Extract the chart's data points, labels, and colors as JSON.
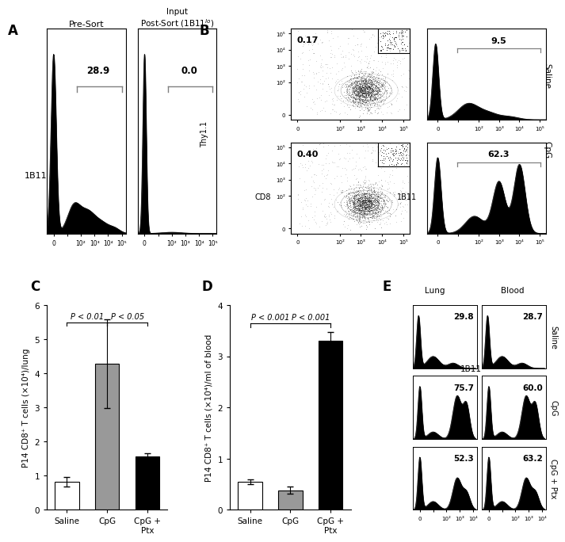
{
  "panel_A": {
    "label": "A",
    "title_left": "Pre-Sort",
    "title_right": "Input\nPost-Sort (1B11ᴸᵒ)",
    "xlabel": "1B11",
    "hist1_value": "28.9",
    "hist2_value": "0.0"
  },
  "panel_B": {
    "label": "B",
    "dot1_value": "0.17",
    "dot2_value": "0.40",
    "hist1_value": "9.5",
    "hist2_value": "62.3",
    "ylabel": "Thy1.1",
    "xlabel": "CD8",
    "xlabel2": "1B11",
    "label_saline": "Saline",
    "label_cpg": "CpG"
  },
  "panel_C": {
    "label": "C",
    "categories": [
      "Saline",
      "CpG",
      "CpG +\nPtx"
    ],
    "values": [
      0.82,
      4.28,
      1.57
    ],
    "errors": [
      0.13,
      1.3,
      0.08
    ],
    "colors": [
      "white",
      "#999999",
      "black"
    ],
    "ylabel": "P14 CD8⁺ T cells (×10⁴)/lung",
    "ylim": [
      0,
      6
    ],
    "yticks": [
      0,
      1,
      2,
      3,
      4,
      5,
      6
    ],
    "sig1_label": "P < 0.01",
    "sig2_label": "P < 0.05"
  },
  "panel_D": {
    "label": "D",
    "categories": [
      "Saline",
      "CpG",
      "CpG +\nPtx"
    ],
    "values": [
      0.55,
      0.38,
      3.3
    ],
    "errors": [
      0.05,
      0.07,
      0.18
    ],
    "colors": [
      "white",
      "#999999",
      "black"
    ],
    "ylabel": "P14 CD8⁺ T cells (×10⁴)/ml of blood",
    "ylim": [
      0,
      4
    ],
    "yticks": [
      0,
      1,
      2,
      3,
      4
    ],
    "sig1_label": "P < 0.001",
    "sig2_label": "P < 0.001"
  },
  "panel_E": {
    "label": "E",
    "col_labels": [
      "Lung",
      "Blood"
    ],
    "row_labels": [
      "Saline",
      "CpG",
      "CpG + Ptx"
    ],
    "values": [
      "29.8",
      "28.7",
      "75.7",
      "60.0",
      "52.3",
      "63.2"
    ],
    "xlabel": "1B11"
  },
  "figure": {
    "bg_color": "white",
    "text_color": "black",
    "bar_edge_color": "black",
    "linewidth": 1.0
  }
}
